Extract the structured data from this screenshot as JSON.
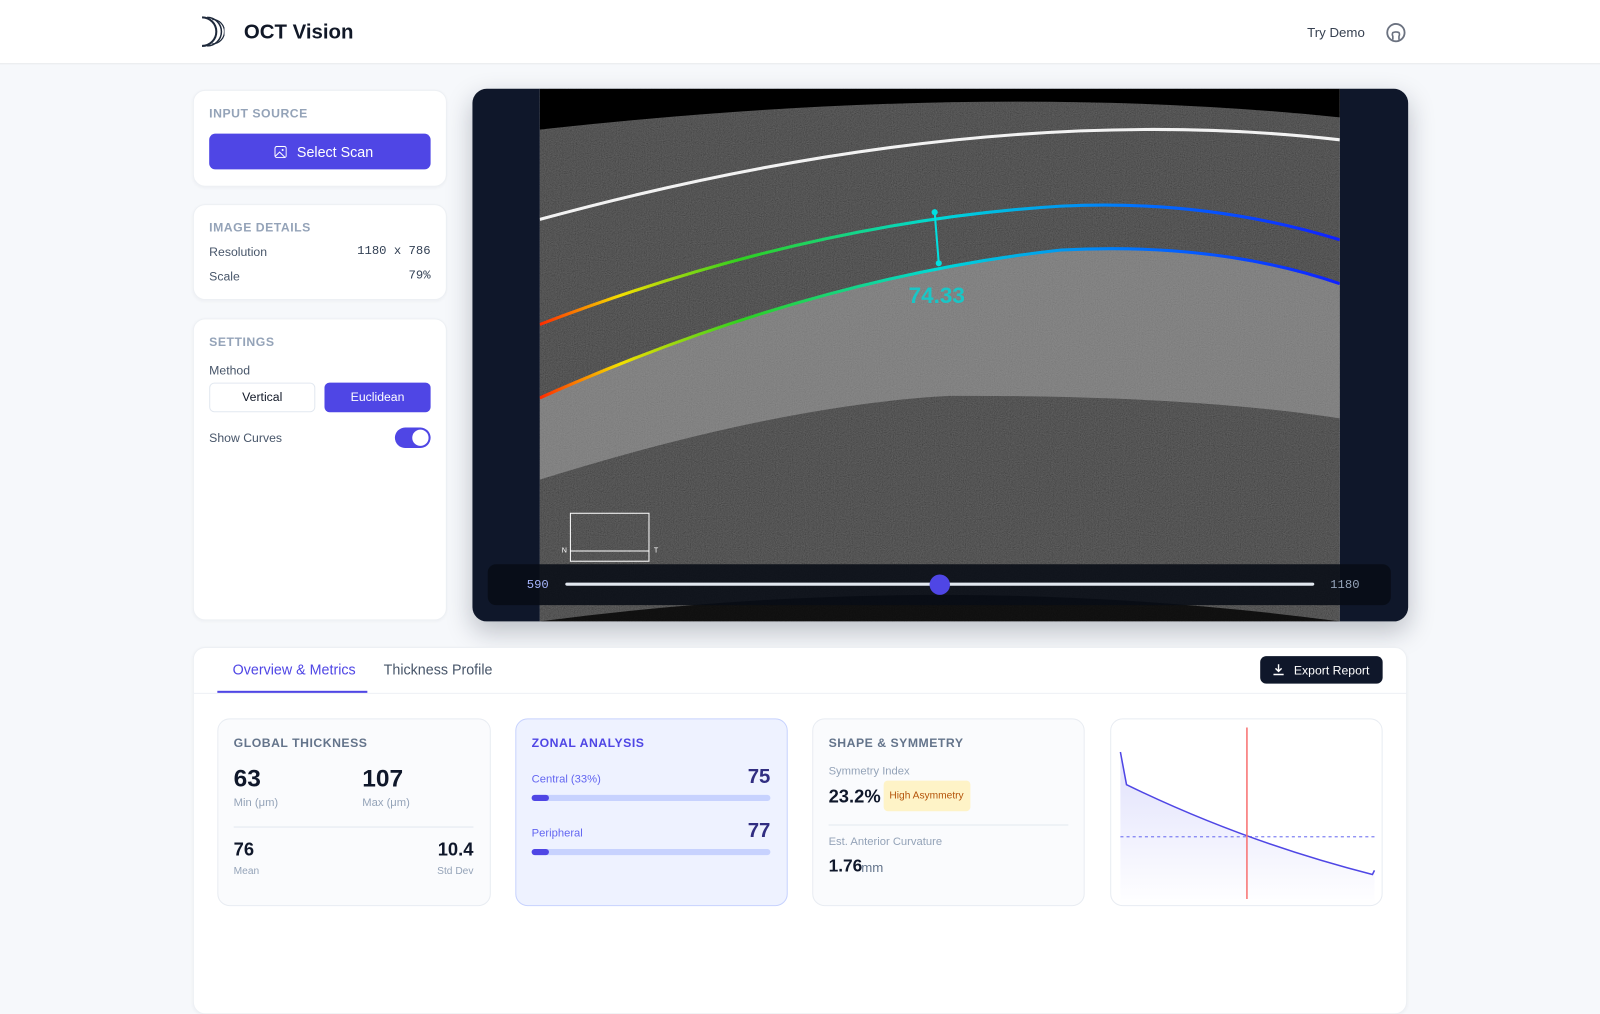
{
  "header": {
    "title": "OCT Vision",
    "nav": "Try Demo"
  },
  "sidebar": {
    "input_source": {
      "title": "INPUT SOURCE",
      "button": "Select Scan"
    },
    "image_details": {
      "title": "IMAGE DETAILS",
      "rows": [
        [
          "Resolution",
          "1180 x 786"
        ],
        [
          "Scale",
          "79%"
        ]
      ]
    },
    "settings": {
      "title": "SETTINGS",
      "method_label": "Method",
      "methods": [
        "Vertical",
        "Euclidean"
      ],
      "toggle_label": "Show Curves"
    }
  },
  "viewer": {
    "measurement": "74.33",
    "orientation": [
      "N",
      "T"
    ],
    "slider": {
      "min": "590",
      "max": "1180"
    }
  },
  "tabs": [
    "Overview & Metrics",
    "Thickness Profile"
  ],
  "export": "Export Report",
  "cards": {
    "global": {
      "title": "GLOBAL THICKNESS",
      "min": "63",
      "min_label": "Min (μm)",
      "max": "107",
      "max_label": "Max (μm)",
      "mean": "76",
      "mean_label": "Mean",
      "std": "10.4",
      "std_label": "Std Dev"
    },
    "zonal": {
      "title": "ZONAL ANALYSIS",
      "zones": [
        {
          "label": "Central (33%)",
          "value": "75"
        },
        {
          "label": "Peripheral",
          "value": "77"
        }
      ]
    },
    "shape": {
      "title": "SHAPE & SYMMETRY",
      "symmetry_label": "Symmetry Index",
      "symmetry": "23.2%",
      "badge": "High Asymmetry",
      "curvature_label": "Est. Anterior Curvature",
      "curvature": "1.76",
      "unit": "mm"
    }
  }
}
